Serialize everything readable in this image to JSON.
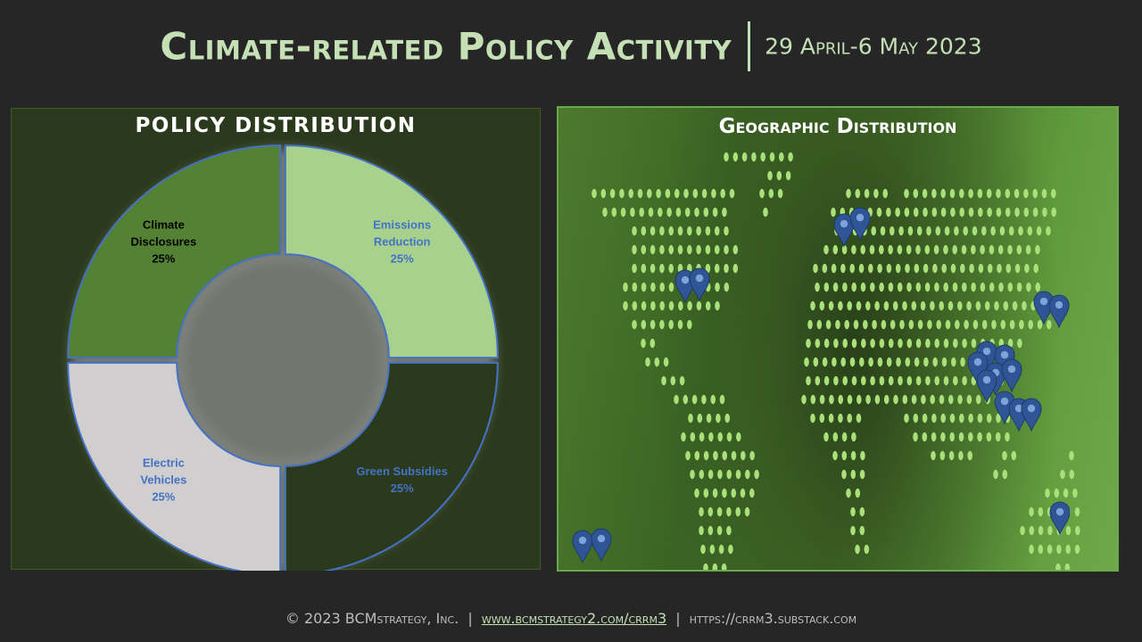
{
  "header": {
    "title": "Climate-related Policy Activity",
    "date": "29 April-6 May  2023"
  },
  "left_panel": {
    "title": "POLICY DISTRIBUTION"
  },
  "right_panel": {
    "title": "Geographic Distribution"
  },
  "chart_data": {
    "type": "pie",
    "variant": "donut",
    "title": "POLICY DISTRIBUTION",
    "slices": [
      {
        "label": "Emissions Reduction",
        "value": 25,
        "value_label": "25%",
        "color": "#a9d18e",
        "label_color": "#4472c4"
      },
      {
        "label": "Green Subsidies",
        "value": 25,
        "value_label": "25%",
        "color": "#2b3a1c",
        "label_color": "#4472c4"
      },
      {
        "label": "Electric Vehicles",
        "value": 25,
        "value_label": "25%",
        "color": "#d0cece",
        "label_color": "#4472c4"
      },
      {
        "label": "Climate Disclosures",
        "value": 25,
        "value_label": "25%",
        "color": "#548235",
        "label_color": "#000000"
      }
    ],
    "slice_border_color": "#4472c4",
    "legend": "none"
  },
  "map": {
    "dot_color": "#a9e07a",
    "marker_color": "#2f5597",
    "marker_icon": "map-pin-icon"
  },
  "footer": {
    "copyright": "© 2023 BCMstrategy, Inc.",
    "link1": "www.bcmstrategy2.com/crrm3",
    "link2": "https://crrm3.substack.com"
  }
}
